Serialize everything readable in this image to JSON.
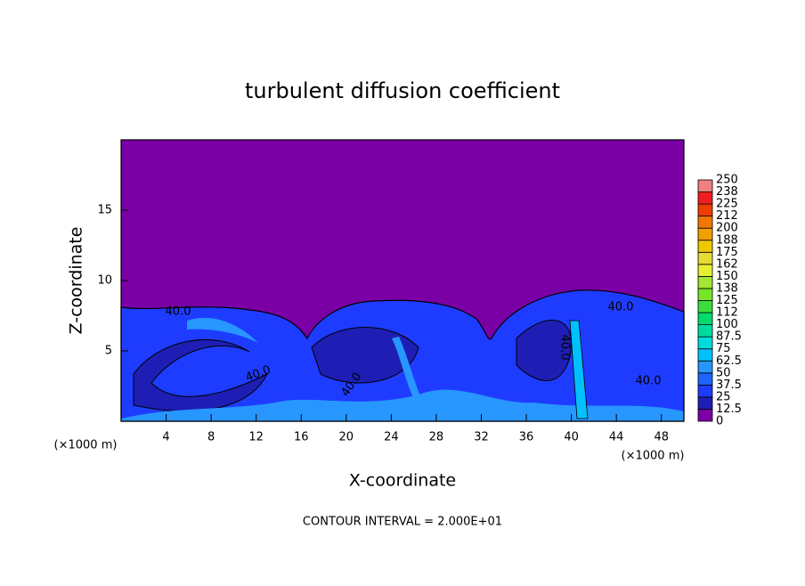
{
  "chart_data": {
    "type": "contour",
    "title": "turbulent diffusion coefficient",
    "x_label": "X-coordinate",
    "y_label": "Z-coordinate",
    "x_unit": "(×1000 m)",
    "footer": "CONTOUR INTERVAL = 2.000E+01",
    "xlim": [
      0,
      50
    ],
    "xticks": [
      4,
      8,
      12,
      16,
      20,
      24,
      28,
      32,
      36,
      40,
      44,
      48
    ],
    "ylim": [
      0,
      20
    ],
    "yticks": [
      5,
      10,
      15
    ],
    "contour_labels": [
      "40.0",
      "40.0",
      "40.0",
      "40.0",
      "40.0",
      "40.0"
    ],
    "colorbar": {
      "ticks": [
        0,
        12.5,
        25,
        37.5,
        50,
        62.5,
        75,
        87.5,
        100,
        {
          "value": 112.5,
          "label": "112"
        },
        125,
        {
          "value": 137.5,
          "label": "138"
        },
        150,
        {
          "value": 162.5,
          "label": "162"
        },
        175,
        {
          "value": 187.5,
          "label": "188"
        },
        200,
        {
          "value": 212.5,
          "label": "212"
        },
        225,
        {
          "value": 237.5,
          "label": "238"
        },
        250
      ],
      "colors": [
        "#7a00a6",
        "#1e1eb4",
        "#1e3cff",
        "#1e64ff",
        "#2896ff",
        "#00c0ff",
        "#00dcdc",
        "#00dca0",
        "#00dc6e",
        "#3cdc3c",
        "#78e628",
        "#a0e632",
        "#e6f032",
        "#e6dc32",
        "#f0c800",
        "#f0a000",
        "#f07800",
        "#f03c00",
        "#f01e1e",
        "#f08080"
      ]
    }
  }
}
